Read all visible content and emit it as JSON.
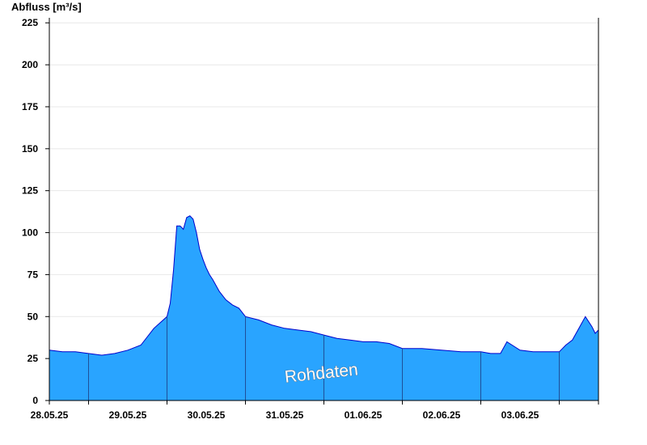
{
  "chart_data": {
    "type": "area",
    "ylabel": "Abfluss [m³/s]",
    "watermark": "Rohdaten",
    "ylim": [
      0,
      228
    ],
    "yticks": [
      0,
      25,
      50,
      75,
      100,
      125,
      150,
      175,
      200,
      225
    ],
    "xlim": [
      "2025-05-27T12:00",
      "2025-06-03T12:00"
    ],
    "xtick_labels": [
      "28.05.25",
      "29.05.25",
      "30.05.25",
      "31.05.25",
      "01.06.25",
      "02.06.25",
      "03.06.25"
    ],
    "day_boundaries": [
      "2025-05-28T00:00",
      "2025-05-29T00:00",
      "2025-05-30T00:00",
      "2025-05-31T00:00",
      "2025-06-01T00:00",
      "2025-06-02T00:00",
      "2025-06-03T00:00"
    ],
    "grid": true,
    "fill_color": "#29a4ff",
    "line_color": "#0000cc",
    "series": [
      {
        "x": [
          "2025-05-27T12:00",
          "2025-05-27T16:00",
          "2025-05-27T20:00",
          "2025-05-28T00:00",
          "2025-05-28T04:00",
          "2025-05-28T08:00",
          "2025-05-28T12:00",
          "2025-05-28T16:00",
          "2025-05-28T20:00",
          "2025-05-29T00:00",
          "2025-05-29T01:00",
          "2025-05-29T02:00",
          "2025-05-29T03:00",
          "2025-05-29T04:00",
          "2025-05-29T05:00",
          "2025-05-29T06:00",
          "2025-05-29T07:00",
          "2025-05-29T08:00",
          "2025-05-29T09:00",
          "2025-05-29T10:00",
          "2025-05-29T11:00",
          "2025-05-29T12:00",
          "2025-05-29T13:00",
          "2025-05-29T14:00",
          "2025-05-29T16:00",
          "2025-05-29T18:00",
          "2025-05-29T20:00",
          "2025-05-29T22:00",
          "2025-05-30T00:00",
          "2025-05-30T04:00",
          "2025-05-30T08:00",
          "2025-05-30T12:00",
          "2025-05-30T16:00",
          "2025-05-30T20:00",
          "2025-05-31T00:00",
          "2025-05-31T04:00",
          "2025-05-31T08:00",
          "2025-05-31T12:00",
          "2025-05-31T16:00",
          "2025-05-31T20:00",
          "2025-06-01T00:00",
          "2025-06-01T06:00",
          "2025-06-01T12:00",
          "2025-06-01T18:00",
          "2025-06-02T00:00",
          "2025-06-02T03:00",
          "2025-06-02T06:00",
          "2025-06-02T08:00",
          "2025-06-02T12:00",
          "2025-06-02T16:00",
          "2025-06-02T20:00",
          "2025-06-03T00:00",
          "2025-06-03T02:00",
          "2025-06-03T04:00",
          "2025-06-03T06:00",
          "2025-06-03T08:00",
          "2025-06-03T10:00",
          "2025-06-03T11:00",
          "2025-06-03T12:00"
        ],
        "y": [
          30,
          29,
          29,
          28,
          27,
          28,
          30,
          33,
          43,
          50,
          58,
          78,
          104,
          104,
          102,
          109,
          110,
          108,
          100,
          90,
          84,
          79,
          75,
          72,
          65,
          60,
          57,
          55,
          50,
          48,
          45,
          43,
          42,
          41,
          39,
          37,
          36,
          35,
          35,
          34,
          31,
          31,
          30,
          29,
          29,
          28,
          28,
          35,
          30,
          29,
          29,
          29,
          33,
          36,
          43,
          50,
          44,
          40,
          42
        ]
      }
    ]
  }
}
